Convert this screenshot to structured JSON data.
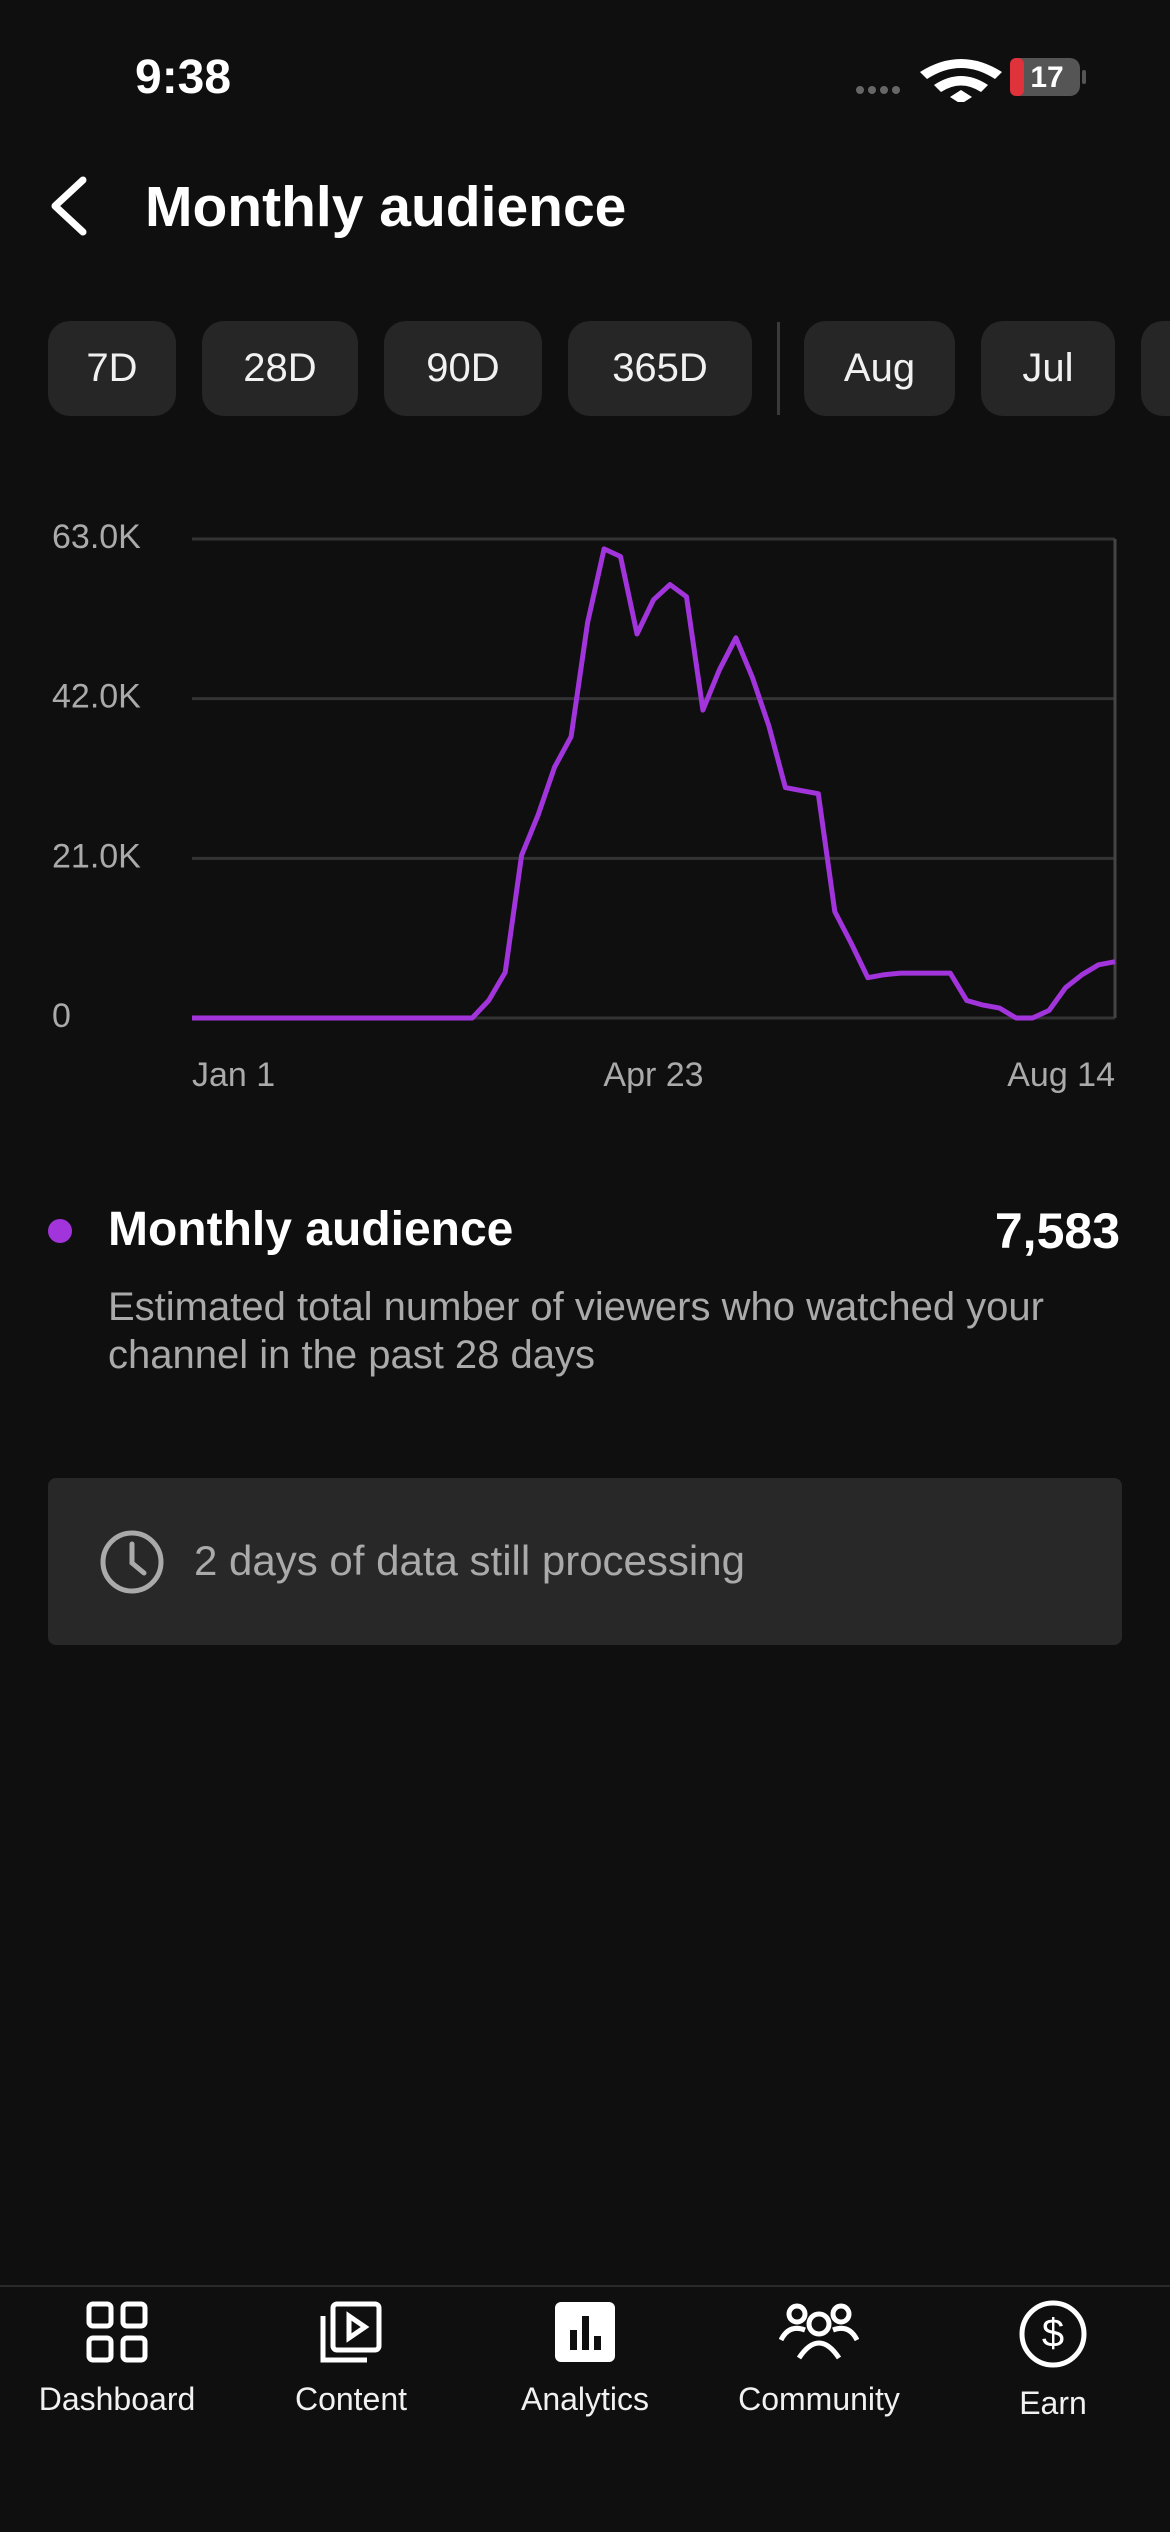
{
  "status_bar": {
    "time": "9:38",
    "battery": "17"
  },
  "header": {
    "title": "Monthly audience"
  },
  "filters": [
    "7D",
    "28D",
    "90D",
    "365D",
    "Aug",
    "Jul"
  ],
  "chart_data": {
    "type": "line",
    "categories": [
      "Jan 1",
      null,
      null,
      null,
      null,
      null,
      null,
      null,
      null,
      null,
      null,
      null,
      null,
      null,
      null,
      null,
      null,
      null,
      null,
      null,
      null,
      null,
      null,
      null,
      null,
      null,
      null,
      null,
      "Apr 23",
      null,
      null,
      null,
      null,
      null,
      null,
      null,
      null,
      null,
      null,
      null,
      null,
      null,
      null,
      null,
      null,
      null,
      null,
      null,
      null,
      null,
      null,
      null,
      null,
      null,
      null,
      null,
      "Aug 14"
    ],
    "series": [
      {
        "name": "Monthly audience",
        "color": "#a234dc",
        "values": [
          0,
          0,
          0,
          0,
          0,
          0,
          0,
          0,
          0,
          0,
          0,
          0,
          0,
          0,
          0,
          0,
          0,
          0,
          2300,
          6000,
          21400,
          26700,
          33000,
          37000,
          52000,
          61700,
          60700,
          50500,
          55000,
          57000,
          55400,
          40500,
          45800,
          50000,
          44800,
          38400,
          30300,
          29900,
          29500,
          14000,
          9800,
          5300,
          5700,
          5900,
          5900,
          5900,
          5900,
          2300,
          1700,
          1300,
          0,
          0,
          1000,
          4000,
          5700,
          7000,
          7400
        ]
      }
    ],
    "ylim": [
      0,
      63000
    ],
    "yticks": [
      0,
      {
        "value": 21000,
        "label": "21.0K"
      },
      {
        "value": 42000,
        "label": "42.0K"
      },
      {
        "value": 63000,
        "label": "63.0K"
      }
    ],
    "grid": true
  },
  "metric": {
    "value": "7,583",
    "description": "Estimated total number of viewers who watched your channel in the past 28 days"
  },
  "notice": {
    "text": "2 days of data still processing"
  },
  "nav": [
    "Dashboard",
    "Content",
    "Analytics",
    "Community",
    "Earn"
  ]
}
